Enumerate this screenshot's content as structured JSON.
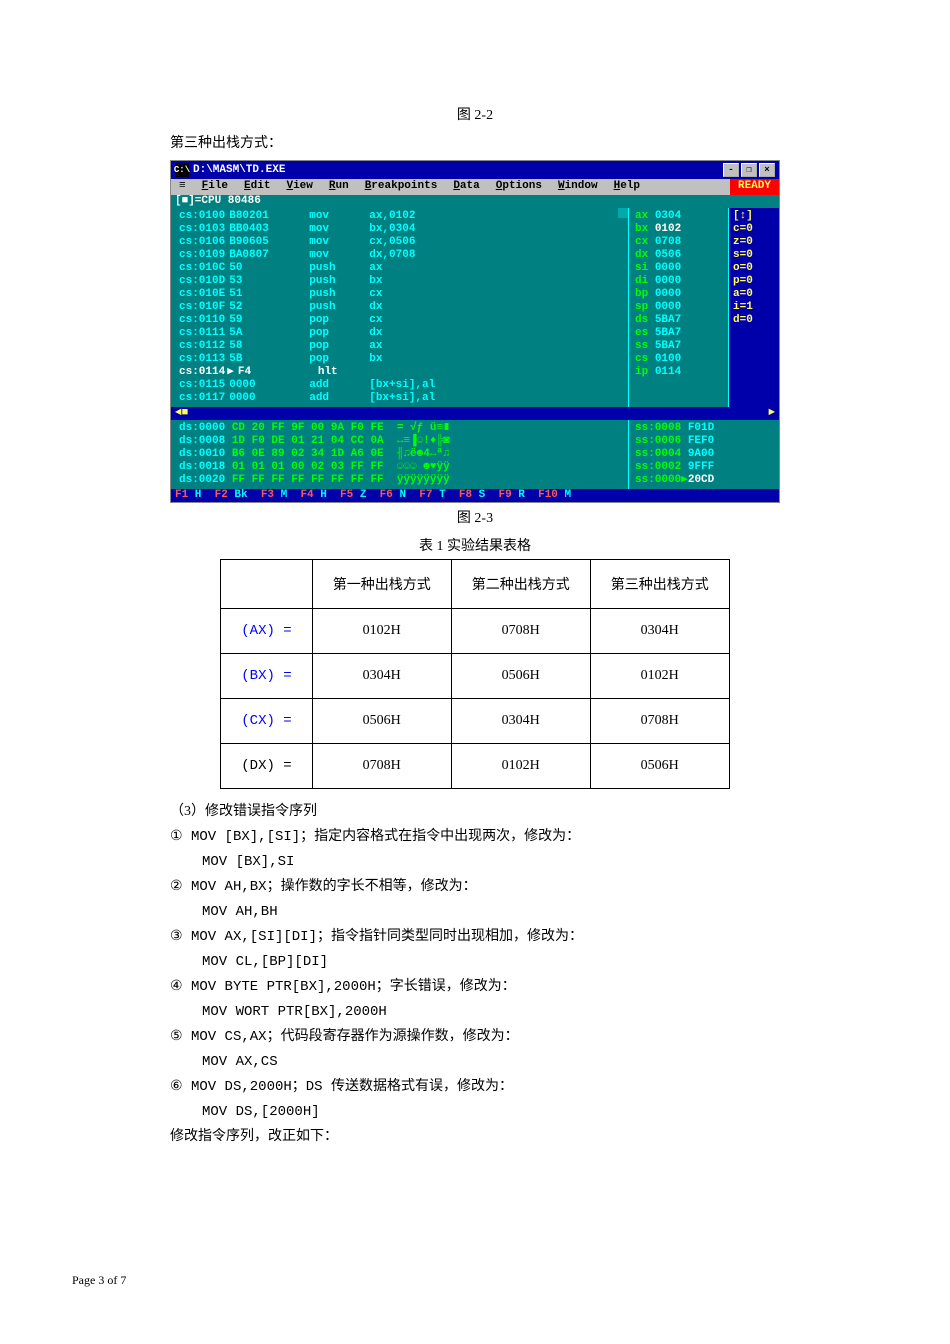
{
  "labels": {
    "fig22": "图 2-2",
    "sectionTitle": "第三种出栈方式：",
    "fig23": "图 2-3",
    "tableTitle": "表 1 实验结果表格",
    "p3": "（3）修改错误指令序列",
    "l1a": "① MOV   [BX],[SI]；指定内容格式在指令中出现两次，修改为：",
    "l1b": "MOV   [BX],SI",
    "l2a": "② MOV   AH,BX；操作数的字长不相等，修改为：",
    "l2b": "MOV   AH,BH",
    "l3a": "③ MOV   AX,[SI][DI]；指令指针同类型同时出现相加，修改为：",
    "l3b": "MOV   CL,[BP][DI]",
    "l4a": "④ MOV   BYTE PTR[BX],2000H；字长错误，修改为：",
    "l4b": "MOV   WORT PTR[BX],2000H",
    "l5a": "⑤ MOV   CS,AX；代码段寄存器作为源操作数，修改为：",
    "l5b": "MOV   AX,CS",
    "l6a": "⑥ MOV   DS,2000H；DS 传送数据格式有误，修改为：",
    "l6b": "MOV   DS,[2000H]",
    "l7": "修改指令序列，改正如下：",
    "footer": "Page 3 of 7"
  },
  "td": {
    "title": "D:\\MASM\\TD.EXE",
    "menus": [
      "File",
      "Edit",
      "View",
      "Run",
      "Breakpoints",
      "Data",
      "Options",
      "Window",
      "Help"
    ],
    "ready": "READY",
    "cpuLabel": "[■]=CPU 80486",
    "code": [
      {
        "addr": "cs:0100",
        "b": "B80201",
        "m": "mov",
        "o": "ax,0102"
      },
      {
        "addr": "cs:0103",
        "b": "BB0403",
        "m": "mov",
        "o": "bx,0304"
      },
      {
        "addr": "cs:0106",
        "b": "B90605",
        "m": "mov",
        "o": "cx,0506"
      },
      {
        "addr": "cs:0109",
        "b": "BA0807",
        "m": "mov",
        "o": "dx,0708"
      },
      {
        "addr": "cs:010C",
        "b": "50",
        "m": "push",
        "o": "ax"
      },
      {
        "addr": "cs:010D",
        "b": "53",
        "m": "push",
        "o": "bx"
      },
      {
        "addr": "cs:010E",
        "b": "51",
        "m": "push",
        "o": "cx"
      },
      {
        "addr": "cs:010F",
        "b": "52",
        "m": "push",
        "o": "dx"
      },
      {
        "addr": "cs:0110",
        "b": "59",
        "m": "pop",
        "o": "cx"
      },
      {
        "addr": "cs:0111",
        "b": "5A",
        "m": "pop",
        "o": "dx"
      },
      {
        "addr": "cs:0112",
        "b": "58",
        "m": "pop",
        "o": "ax"
      },
      {
        "addr": "cs:0113",
        "b": "5B",
        "m": "pop",
        "o": "bx"
      },
      {
        "addr": "cs:0114",
        "b": "F4",
        "m": "hlt",
        "o": "",
        "hl": true
      },
      {
        "addr": "cs:0115",
        "b": "0000",
        "m": "add",
        "o": "[bx+si],al"
      },
      {
        "addr": "cs:0117",
        "b": "0000",
        "m": "add",
        "o": "[bx+si],al"
      }
    ],
    "regs": [
      {
        "n": "ax",
        "v": "0304"
      },
      {
        "n": "bx",
        "v": "0102",
        "white": true
      },
      {
        "n": "cx",
        "v": "0708"
      },
      {
        "n": "dx",
        "v": "0506"
      },
      {
        "n": "si",
        "v": "0000"
      },
      {
        "n": "di",
        "v": "0000"
      },
      {
        "n": "bp",
        "v": "0000"
      },
      {
        "n": "sp",
        "v": "0000"
      },
      {
        "n": "ds",
        "v": "5BA7"
      },
      {
        "n": "es",
        "v": "5BA7"
      },
      {
        "n": "ss",
        "v": "5BA7"
      },
      {
        "n": "cs",
        "v": "0100"
      },
      {
        "n": "ip",
        "v": "0114"
      }
    ],
    "flags": [
      "c=0",
      "z=0",
      "s=0",
      "o=0",
      "p=0",
      "a=0",
      "i=1",
      "d=0"
    ],
    "dump": [
      {
        "a": "ds:0000",
        "h": "CD 20 FF 9F 00 9A F0 FE",
        "t": "= √ƒ ü≡∎"
      },
      {
        "a": "ds:0008",
        "h": "1D F0 DE 01 21 04 CC 0A",
        "t": "↔≡▐☺!♦╠◙"
      },
      {
        "a": "ds:0010",
        "h": "B6 0E 89 02 34 1D A6 0E",
        "t": "╢♫ë☻4↔ª♫"
      },
      {
        "a": "ds:0018",
        "h": "01 01 01 00 02 03 FF FF",
        "t": "☺☺☺ ☻♥ÿÿ"
      },
      {
        "a": "ds:0020",
        "h": "FF FF FF FF FF FF FF FF",
        "t": "ÿÿÿÿÿÿÿÿ"
      }
    ],
    "stack": [
      {
        "a": "ss:0008",
        "v": "F01D"
      },
      {
        "a": "ss:0006",
        "v": "FEF0"
      },
      {
        "a": "ss:0004",
        "v": "9A00"
      },
      {
        "a": "ss:0002",
        "v": "9FFF"
      },
      {
        "a": "ss:0000",
        "v": "20CD",
        "sel": true
      }
    ]
  },
  "etable": {
    "headers": [
      "",
      "第一种出栈方式",
      "第二种出栈方式",
      "第三种出栈方式"
    ],
    "rows": [
      {
        "r": "(AX) =",
        "c": "blue",
        "v": [
          "0102H",
          "0708H",
          "0304H"
        ]
      },
      {
        "r": "(BX) =",
        "c": "blue",
        "v": [
          "0304H",
          "0506H",
          "0102H"
        ]
      },
      {
        "r": "(CX) =",
        "c": "blue",
        "v": [
          "0506H",
          "0304H",
          "0708H"
        ]
      },
      {
        "r": "(DX) =",
        "c": "black",
        "v": [
          "0708H",
          "0102H",
          "0506H"
        ]
      }
    ]
  }
}
